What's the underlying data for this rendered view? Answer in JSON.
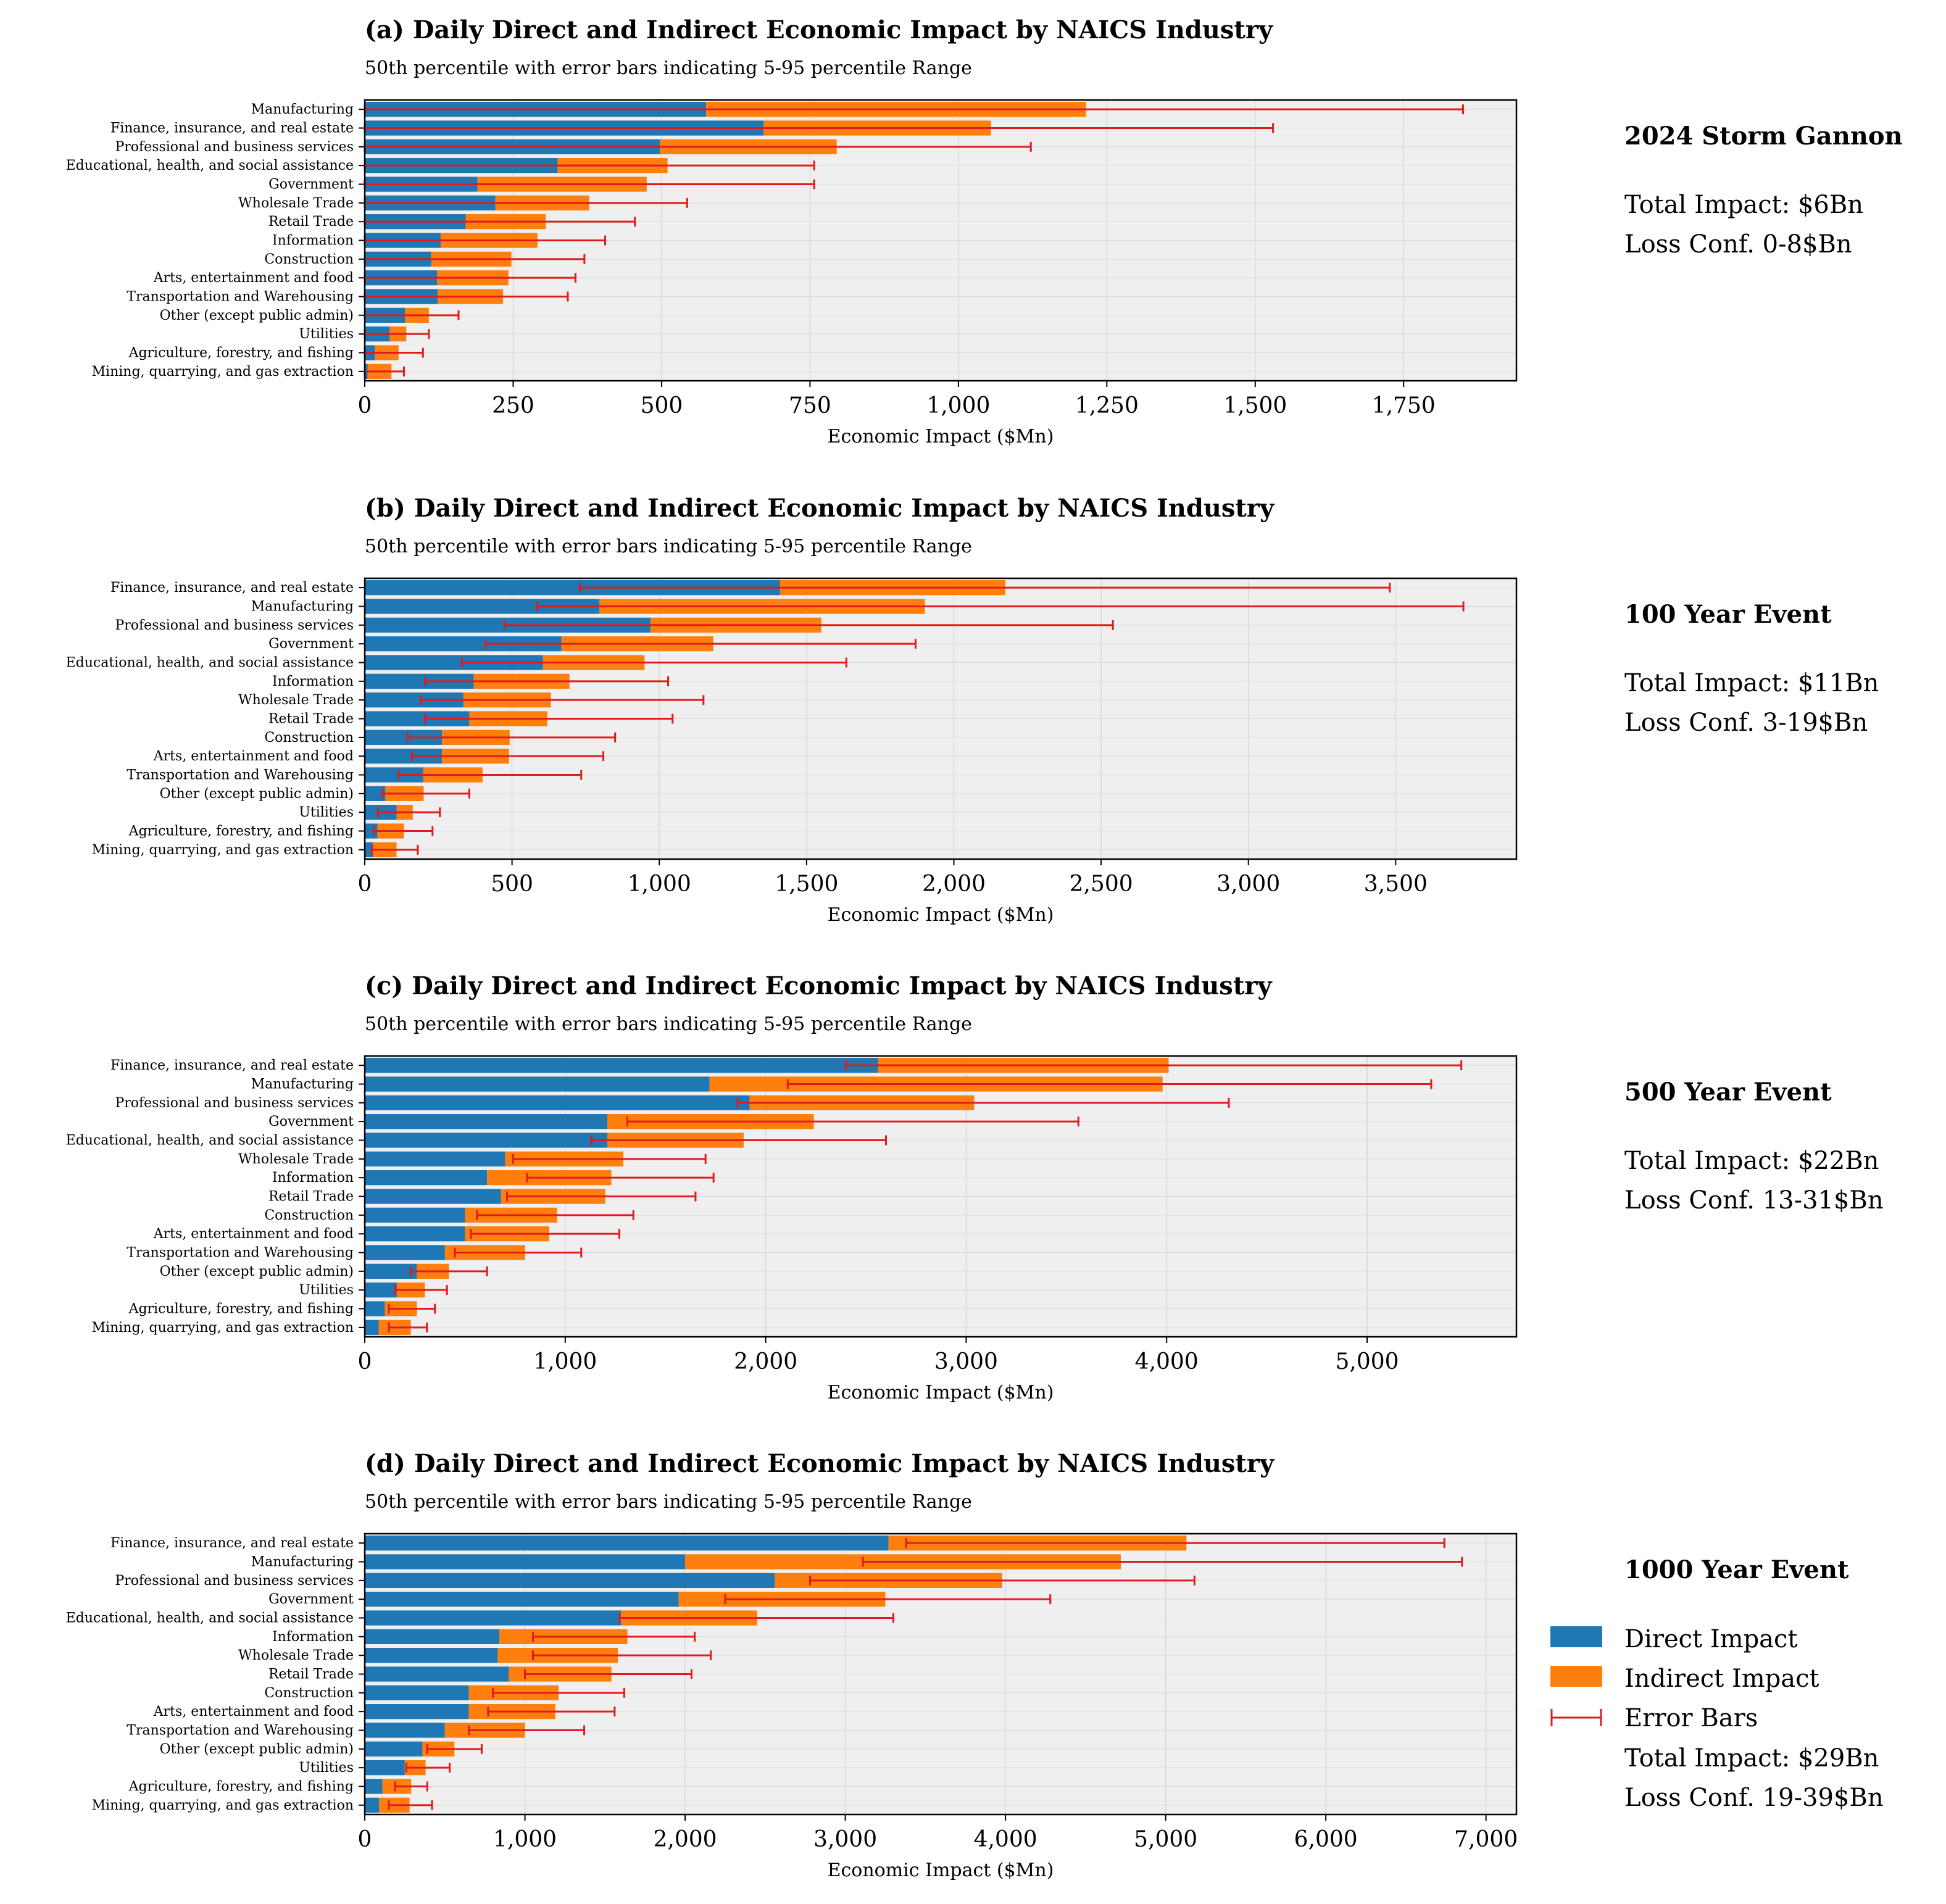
{
  "colors": {
    "direct": "#1f77b4",
    "indirect": "#ff7f0e",
    "error": "#e31a1c",
    "panel_bg": "#efefef",
    "grid": "#d9d9d9"
  },
  "legend": {
    "direct": "Direct Impact",
    "indirect": "Indirect Impact",
    "error": "Error Bars"
  },
  "chart_data": [
    {
      "type": "bar",
      "orientation": "horizontal",
      "stacked": true,
      "title": "(a) Daily Direct and Indirect Economic Impact by NAICS Industry",
      "subtitle": "50th percentile with error bars indicating 5-95 percentile Range",
      "xlabel": "Economic Impact ($Mn)",
      "xlim": [
        0,
        1940
      ],
      "xticks": [
        0,
        250,
        500,
        750,
        1000,
        1250,
        1500,
        1750
      ],
      "xtick_labels": [
        "0",
        "250",
        "500",
        "750",
        "1,000",
        "1,250",
        "1,500",
        "1,750"
      ],
      "grid": true,
      "side_title": "2024 Storm Gannon",
      "total_impact": "Total Impact: $6Bn",
      "loss_conf": "Loss Conf. 0-8$Bn",
      "categories": [
        "Manufacturing",
        "Finance, insurance, and real estate",
        "Professional and business services",
        "Educational, health, and social assistance",
        "Government",
        "Wholesale Trade",
        "Retail Trade",
        "Information",
        "Construction",
        "Arts, entertainment and food",
        "Transportation and Warehousing",
        "Other (except public admin)",
        "Utilities",
        "Agriculture, forestry, and fishing",
        "Mining, quarrying, and gas extraction"
      ],
      "series": [
        {
          "name": "Direct Impact",
          "values": [
            575,
            672,
            497,
            325,
            190,
            220,
            170,
            128,
            112,
            122,
            123,
            68,
            42,
            17,
            5
          ]
        },
        {
          "name": "Indirect Impact",
          "values": [
            640,
            383,
            298,
            185,
            285,
            158,
            135,
            163,
            135,
            120,
            110,
            40,
            28,
            40,
            40
          ]
        }
      ],
      "error_low": [
        0,
        0,
        0,
        0,
        0,
        0,
        0,
        0,
        0,
        0,
        0,
        0,
        0,
        0,
        0
      ],
      "error_high": [
        1850,
        1530,
        1122,
        757,
        757,
        543,
        455,
        405,
        370,
        355,
        342,
        158,
        108,
        98,
        66
      ]
    },
    {
      "type": "bar",
      "orientation": "horizontal",
      "stacked": true,
      "title": "(b) Daily Direct and Indirect Economic Impact by NAICS Industry",
      "subtitle": "50th percentile with error bars indicating 5-95 percentile Range",
      "xlabel": "Economic Impact ($Mn)",
      "xlim": [
        0,
        3910
      ],
      "xticks": [
        0,
        500,
        1000,
        1500,
        2000,
        2500,
        3000,
        3500
      ],
      "xtick_labels": [
        "0",
        "500",
        "1,000",
        "1,500",
        "2,000",
        "2,500",
        "3,000",
        "3,500"
      ],
      "grid": true,
      "side_title": "100 Year Event",
      "total_impact": "Total Impact: $11Bn",
      "loss_conf": "Loss Conf. 3-19$Bn",
      "categories": [
        "Finance, insurance, and real estate",
        "Manufacturing",
        "Professional and business services",
        "Government",
        "Educational, health, and social assistance",
        "Information",
        "Wholesale Trade",
        "Retail Trade",
        "Construction",
        "Arts, entertainment and food",
        "Transportation and Warehousing",
        "Other (except public admin)",
        "Utilities",
        "Agriculture, forestry, and fishing",
        "Mining, quarrying, and gas extraction"
      ],
      "series": [
        {
          "name": "Direct Impact",
          "values": [
            1410,
            797,
            970,
            668,
            605,
            370,
            335,
            355,
            262,
            262,
            198,
            70,
            108,
            43,
            28
          ]
        },
        {
          "name": "Indirect Impact",
          "values": [
            765,
            1105,
            580,
            515,
            345,
            325,
            297,
            265,
            230,
            228,
            202,
            130,
            55,
            90,
            80
          ]
        }
      ],
      "error_low": [
        730,
        585,
        475,
        410,
        330,
        205,
        190,
        205,
        145,
        160,
        115,
        60,
        45,
        30,
        25
      ],
      "error_high": [
        3480,
        3730,
        2540,
        1870,
        1635,
        1030,
        1150,
        1045,
        850,
        810,
        735,
        355,
        255,
        230,
        180
      ]
    },
    {
      "type": "bar",
      "orientation": "horizontal",
      "stacked": true,
      "title": "(c) Daily Direct and Indirect Economic Impact by NAICS Industry",
      "subtitle": "50th percentile with error bars indicating 5-95 percentile Range",
      "xlabel": "Economic Impact ($Mn)",
      "xlim": [
        0,
        5745
      ],
      "xticks": [
        0,
        1000,
        2000,
        3000,
        4000,
        5000
      ],
      "xtick_labels": [
        "0",
        "1,000",
        "2,000",
        "3,000",
        "4,000",
        "5,000"
      ],
      "grid": true,
      "side_title": "500 Year Event",
      "total_impact": "Total Impact: $22Bn",
      "loss_conf": "Loss Conf. 13-31$Bn",
      "categories": [
        "Finance, insurance, and real estate",
        "Manufacturing",
        "Professional and business services",
        "Government",
        "Educational, health, and social assistance",
        "Wholesale Trade",
        "Information",
        "Retail Trade",
        "Construction",
        "Arts, entertainment and food",
        "Transportation and Warehousing",
        "Other (except public admin)",
        "Utilities",
        "Agriculture, forestry, and fishing",
        "Mining, quarrying, and gas extraction"
      ],
      "series": [
        {
          "name": "Direct Impact",
          "values": [
            2560,
            1720,
            1920,
            1210,
            1210,
            700,
            610,
            680,
            500,
            500,
            400,
            260,
            160,
            100,
            70
          ]
        },
        {
          "name": "Indirect Impact",
          "values": [
            1450,
            2260,
            1120,
            1030,
            680,
            590,
            620,
            520,
            460,
            420,
            400,
            160,
            140,
            160,
            160
          ]
        }
      ],
      "error_low": [
        2400,
        2110,
        1860,
        1310,
        1130,
        740,
        810,
        710,
        560,
        530,
        450,
        230,
        150,
        120,
        120
      ],
      "error_high": [
        5470,
        5320,
        4310,
        3560,
        2600,
        1700,
        1740,
        1650,
        1340,
        1270,
        1080,
        610,
        410,
        350,
        310
      ]
    },
    {
      "type": "bar",
      "orientation": "horizontal",
      "stacked": true,
      "title": "(d) Daily Direct and Indirect Economic Impact by NAICS Industry",
      "subtitle": "50th percentile with error bars indicating 5-95 percentile Range",
      "xlabel": "Economic Impact ($Mn)",
      "xlim": [
        0,
        7190
      ],
      "xticks": [
        0,
        1000,
        2000,
        3000,
        4000,
        5000,
        6000,
        7000
      ],
      "xtick_labels": [
        "0",
        "1,000",
        "2,000",
        "3,000",
        "4,000",
        "5,000",
        "6,000",
        "7,000"
      ],
      "grid": true,
      "side_title": "1000 Year Event",
      "total_impact": "Total Impact: $29Bn",
      "loss_conf": "Loss Conf. 19-39$Bn",
      "categories": [
        "Finance, insurance, and real estate",
        "Manufacturing",
        "Professional and business services",
        "Government",
        "Educational, health, and social assistance",
        "Information",
        "Wholesale Trade",
        "Retail Trade",
        "Construction",
        "Arts, entertainment and food",
        "Transportation and Warehousing",
        "Other (except public admin)",
        "Utilities",
        "Agriculture, forestry, and fishing",
        "Mining, quarrying, and gas extraction"
      ],
      "series": [
        {
          "name": "Direct Impact",
          "values": [
            3270,
            2000,
            2560,
            1960,
            1600,
            840,
            830,
            900,
            650,
            650,
            500,
            360,
            250,
            110,
            90
          ]
        },
        {
          "name": "Indirect Impact",
          "values": [
            1860,
            2720,
            1420,
            1290,
            850,
            800,
            750,
            640,
            560,
            540,
            500,
            200,
            130,
            180,
            190
          ]
        }
      ],
      "error_low": [
        3380,
        3110,
        2780,
        2250,
        1590,
        1050,
        1050,
        1000,
        800,
        770,
        650,
        390,
        260,
        190,
        150
      ],
      "error_high": [
        6740,
        6850,
        5180,
        4280,
        3300,
        2060,
        2160,
        2040,
        1620,
        1560,
        1370,
        730,
        530,
        390,
        420
      ]
    }
  ]
}
